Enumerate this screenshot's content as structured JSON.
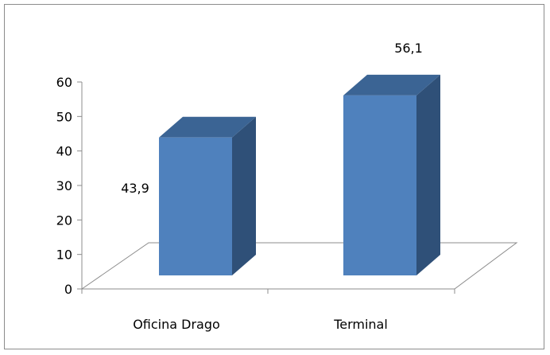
{
  "chart_data": {
    "type": "bar",
    "style": "3d-column",
    "categories": [
      "Oficina Drago",
      "Terminal"
    ],
    "values": [
      43.9,
      56.1
    ],
    "value_labels": [
      "43,9",
      "56,1"
    ],
    "ylim": [
      0,
      60
    ],
    "yticks": [
      "0",
      "10",
      "20",
      "30",
      "40",
      "50",
      "60"
    ],
    "grid": false,
    "legend": "none",
    "colors": {
      "bar_front": "#4f81bd",
      "bar_side": "#2f5078",
      "bar_top": "#3b6494",
      "floor_stroke": "#8c8c8c"
    }
  }
}
